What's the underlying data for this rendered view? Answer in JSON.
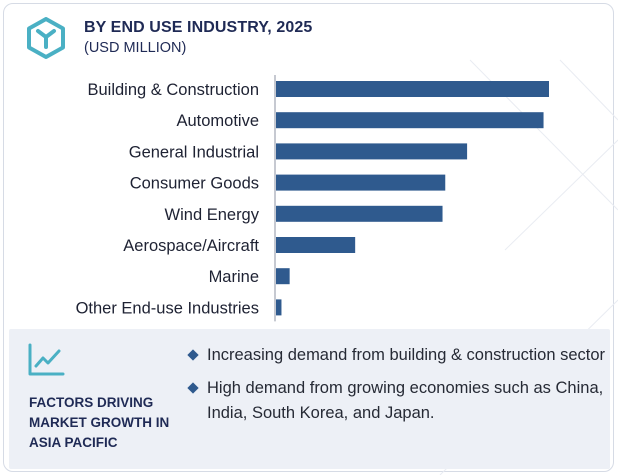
{
  "header": {
    "title": "BY END USE INDUSTRY, 2025",
    "subtitle": "(USD MILLION)"
  },
  "colors": {
    "bar": "#2f5a8e",
    "heading": "#1f2a55",
    "accent_icon": "#4ab0c4",
    "panel_bg": "#edf0f6"
  },
  "icons": {
    "logo": "hexagon-y-logo-icon",
    "trend": "trend-line-chart-icon",
    "bullet": "diamond-bullet-icon"
  },
  "chart_data": {
    "type": "bar",
    "orientation": "horizontal",
    "title": "BY END USE INDUSTRY, 2025",
    "subtitle": "(USD MILLION)",
    "categories": [
      "Building & Construction",
      "Automotive",
      "General Industrial",
      "Consumer Goods",
      "Wind Energy",
      "Aerospace/Aircraft",
      "Marine",
      "Other End-use Industries"
    ],
    "values": [
      100,
      98,
      70,
      62,
      61,
      29,
      5,
      2
    ],
    "xlim": [
      0,
      100
    ],
    "grid": false,
    "legend": "none"
  },
  "factors": {
    "heading": "FACTORS DRIVING\nMARKET GROWTH IN\nASIA PACIFIC",
    "items": [
      "Increasing demand from building & construction sector",
      "High demand from growing economies such as China, India, South Korea, and Japan."
    ]
  }
}
